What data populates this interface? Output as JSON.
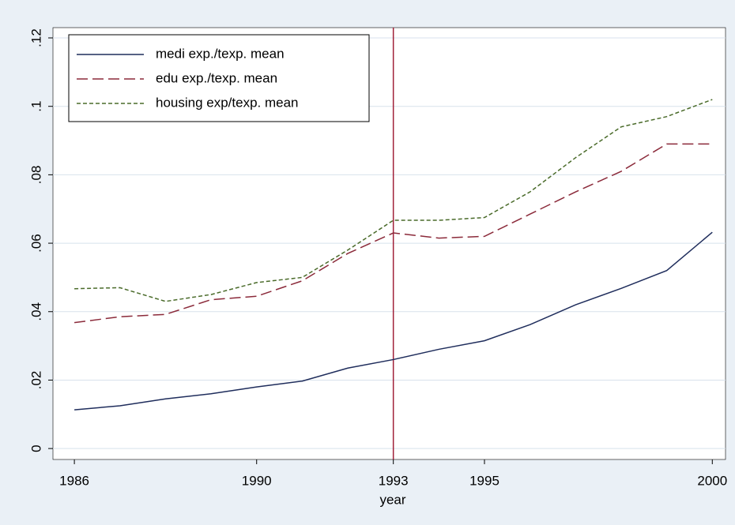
{
  "chart_data": {
    "type": "line",
    "x_label": "year",
    "x": [
      1986,
      1987,
      1988,
      1989,
      1990,
      1991,
      1992,
      1993,
      1994,
      1995,
      1996,
      1997,
      1998,
      1999,
      2000
    ],
    "series": [
      {
        "name": "medi exp./texp. mean",
        "color": "#1f2d5c",
        "dash": "none",
        "values": [
          0.0113,
          0.0125,
          0.0145,
          0.016,
          0.018,
          0.0197,
          0.0235,
          0.026,
          0.029,
          0.0315,
          0.0362,
          0.042,
          0.0468,
          0.052,
          0.0632
        ]
      },
      {
        "name": "edu exp./texp. mean",
        "color": "#8b2a3a",
        "dash": "14 6",
        "values": [
          0.0368,
          0.0385,
          0.0392,
          0.0435,
          0.0445,
          0.049,
          0.057,
          0.063,
          0.0615,
          0.062,
          0.0685,
          0.075,
          0.081,
          0.089,
          0.089
        ]
      },
      {
        "name": "housing exp/texp. mean",
        "color": "#4a6b2a",
        "dash": "5 3",
        "values": [
          0.0467,
          0.047,
          0.043,
          0.045,
          0.0485,
          0.05,
          0.058,
          0.0667,
          0.0667,
          0.0675,
          0.075,
          0.085,
          0.094,
          0.097,
          0.102
        ]
      }
    ],
    "xlim": [
      1985.53,
      2000.29
    ],
    "ylim": [
      -0.0032,
      0.123
    ],
    "xticks": [
      1986,
      1990,
      1993,
      1995,
      2000
    ],
    "yticks": [
      0,
      {
        "value": 0.02,
        "label": ".02"
      },
      {
        "value": 0.04,
        "label": ".04"
      },
      {
        "value": 0.06,
        "label": ".06"
      },
      {
        "value": 0.08,
        "label": ".08"
      },
      {
        "value": 0.1,
        "label": ".1"
      },
      {
        "value": 0.12,
        "label": ".12"
      }
    ],
    "xline": 1993,
    "xline_color": "#a0203a",
    "grid": true,
    "legend": "top-left"
  }
}
